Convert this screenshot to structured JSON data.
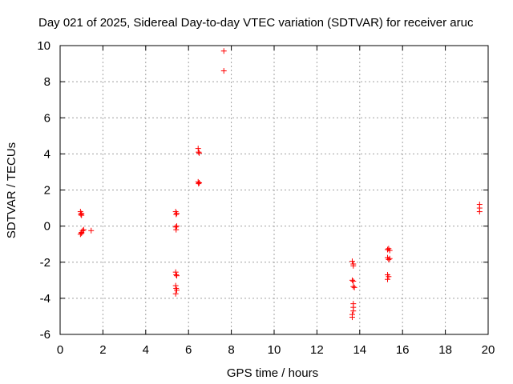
{
  "chart_data": {
    "type": "scatter",
    "title": "Day 021 of 2025, Sidereal Day-to-day VTEC variation (SDTVAR) for receiver aruc",
    "xlabel": "GPS time / hours",
    "ylabel": "SDTVAR / TECUs",
    "xlim": [
      0,
      20
    ],
    "ylim": [
      -6,
      10
    ],
    "xticks": [
      0,
      2,
      4,
      6,
      8,
      10,
      12,
      14,
      16,
      18,
      20
    ],
    "yticks": [
      -6,
      -4,
      -2,
      0,
      2,
      4,
      6,
      8,
      10
    ],
    "grid": true,
    "legend": "none",
    "marker": "+",
    "colors": {
      "points": "#ff0000",
      "grid": "#a0a0a0",
      "axes": "#000000"
    },
    "series": [
      {
        "name": "SDTVAR",
        "points": [
          [
            0.95,
            0.8
          ],
          [
            0.97,
            0.65
          ],
          [
            1.0,
            0.7
          ],
          [
            1.0,
            0.6
          ],
          [
            0.95,
            -0.45
          ],
          [
            1.0,
            -0.35
          ],
          [
            1.05,
            -0.25
          ],
          [
            1.1,
            -0.2
          ],
          [
            1.0,
            -0.4
          ],
          [
            1.45,
            -0.25
          ],
          [
            5.4,
            0.8
          ],
          [
            5.42,
            0.65
          ],
          [
            5.45,
            0.7
          ],
          [
            5.4,
            -0.05
          ],
          [
            5.42,
            -0.2
          ],
          [
            5.45,
            0.0
          ],
          [
            5.4,
            -2.55
          ],
          [
            5.42,
            -2.7
          ],
          [
            5.45,
            -2.75
          ],
          [
            5.4,
            -3.3
          ],
          [
            5.42,
            -3.45
          ],
          [
            5.45,
            -3.55
          ],
          [
            5.4,
            -3.75
          ],
          [
            6.45,
            4.3
          ],
          [
            6.47,
            4.1
          ],
          [
            6.5,
            4.05
          ],
          [
            6.45,
            2.45
          ],
          [
            6.47,
            2.35
          ],
          [
            6.5,
            2.4
          ],
          [
            7.65,
            9.7
          ],
          [
            7.65,
            8.6
          ],
          [
            13.65,
            -1.95
          ],
          [
            13.7,
            -2.1
          ],
          [
            13.7,
            -2.2
          ],
          [
            13.65,
            -3.0
          ],
          [
            13.7,
            -3.05
          ],
          [
            13.7,
            -3.35
          ],
          [
            13.75,
            -3.4
          ],
          [
            13.7,
            -4.3
          ],
          [
            13.7,
            -4.5
          ],
          [
            13.7,
            -4.7
          ],
          [
            13.65,
            -4.9
          ],
          [
            13.65,
            -5.05
          ],
          [
            15.3,
            -1.3
          ],
          [
            15.35,
            -1.25
          ],
          [
            15.4,
            -1.35
          ],
          [
            15.3,
            -1.75
          ],
          [
            15.35,
            -1.85
          ],
          [
            15.4,
            -1.8
          ],
          [
            15.3,
            -2.7
          ],
          [
            15.35,
            -2.8
          ],
          [
            15.3,
            -2.95
          ],
          [
            19.6,
            1.2
          ],
          [
            19.6,
            1.0
          ],
          [
            19.6,
            0.8
          ]
        ]
      }
    ]
  }
}
